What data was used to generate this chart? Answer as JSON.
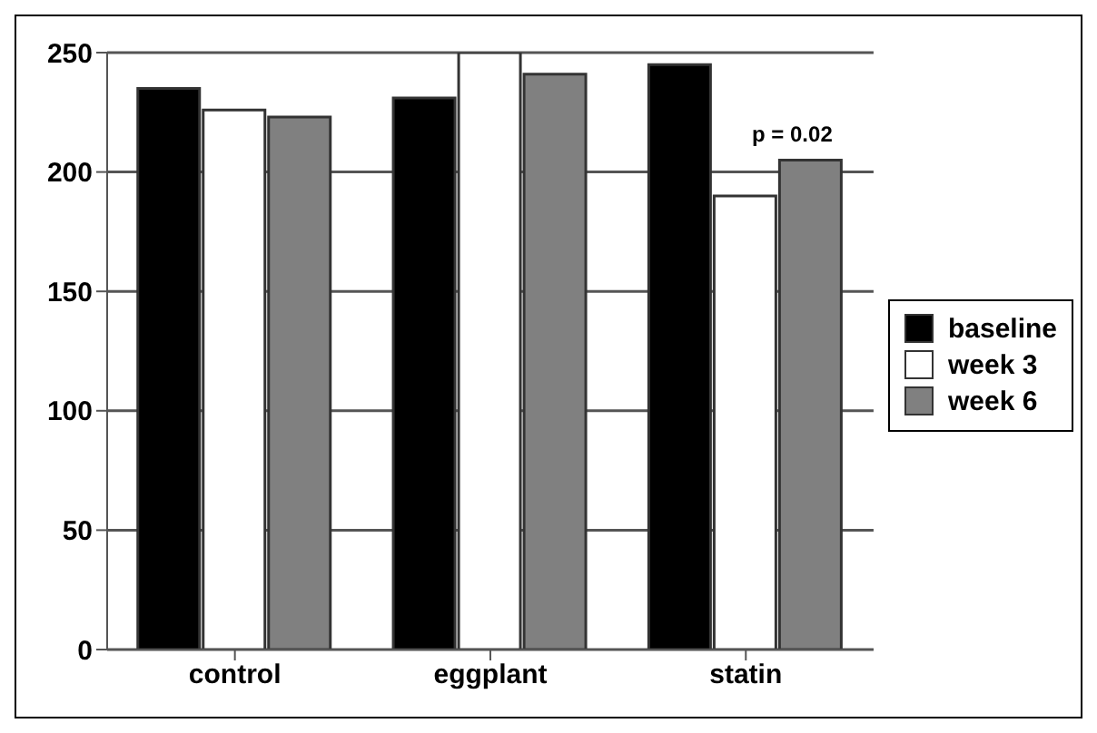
{
  "chart_data": {
    "type": "bar",
    "categories": [
      "control",
      "eggplant",
      "statin"
    ],
    "series": [
      {
        "name": "baseline",
        "color": "#000000",
        "values": [
          235,
          231,
          245
        ]
      },
      {
        "name": "week 3",
        "color": "#ffffff",
        "values": [
          226,
          250,
          190
        ]
      },
      {
        "name": "week 6",
        "color": "#808080",
        "values": [
          223,
          241,
          205
        ]
      }
    ],
    "ylim": [
      0,
      250
    ],
    "yticks": [
      0,
      50,
      100,
      150,
      200,
      250
    ],
    "grid": "y",
    "legend": "right",
    "annotations": [
      "p = 0.02"
    ]
  }
}
